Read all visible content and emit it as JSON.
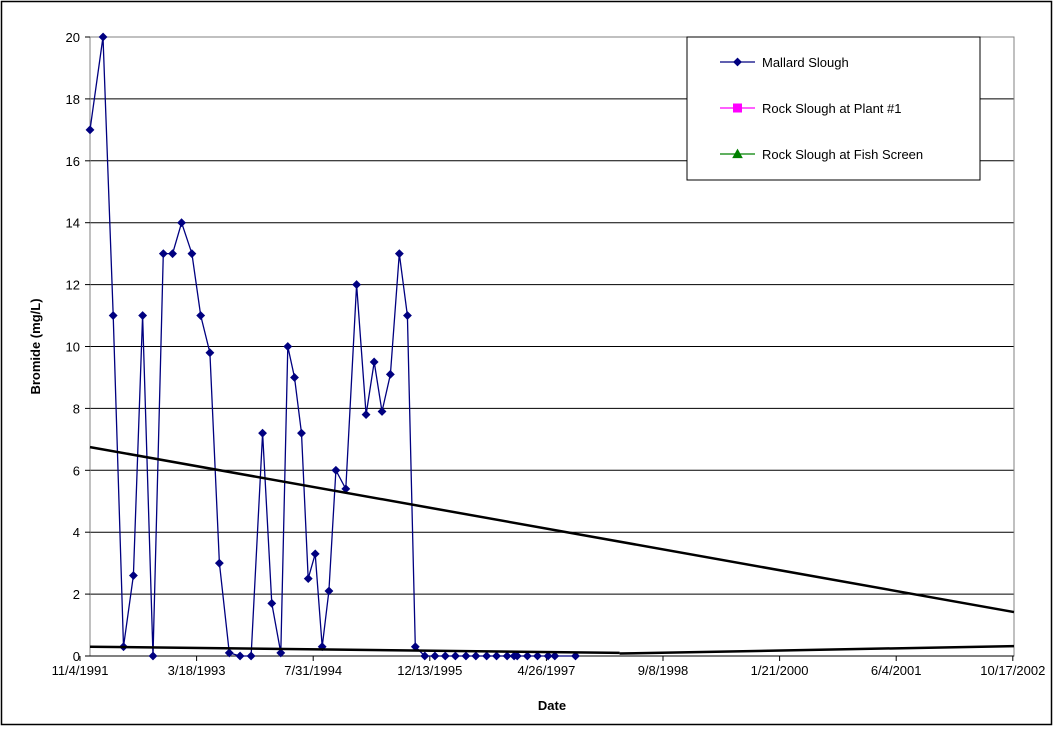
{
  "chart_data": {
    "type": "line",
    "title": "",
    "xlabel": "Date",
    "ylabel": "Bromide (mg/L)",
    "x_ticks": [
      "11/4/1991",
      "3/18/1993",
      "7/31/1994",
      "12/13/1995",
      "4/26/1997",
      "9/8/1998",
      "1/21/2000",
      "6/4/2001",
      "10/17/2002"
    ],
    "xlim": [
      "1991-11-04",
      "2003-02-01"
    ],
    "ylim": [
      0,
      20
    ],
    "y_ticks": [
      0,
      2,
      4,
      6,
      8,
      10,
      12,
      14,
      16,
      18,
      20
    ],
    "grid": "horizontal",
    "legend_position": "top-right",
    "series": [
      {
        "name": "Mallard Slough",
        "color": "#000080",
        "marker": "diamond",
        "points": [
          [
            "1991-11-04",
            17
          ],
          [
            "1992-01-01",
            20
          ],
          [
            "1992-02-15",
            11
          ],
          [
            "1992-04-01",
            0.3
          ],
          [
            "1992-05-15",
            2.6
          ],
          [
            "1992-06-25",
            11
          ],
          [
            "1992-08-10",
            0
          ],
          [
            "1992-09-25",
            13
          ],
          [
            "1992-11-05",
            13
          ],
          [
            "1992-12-15",
            14
          ],
          [
            "1993-01-30",
            13
          ],
          [
            "1993-03-10",
            11
          ],
          [
            "1993-04-20",
            9.8
          ],
          [
            "1993-06-01",
            3
          ],
          [
            "1993-07-15",
            0.1
          ],
          [
            "1993-09-01",
            0
          ],
          [
            "1993-10-20",
            0
          ],
          [
            "1993-12-10",
            7.2
          ],
          [
            "1994-01-20",
            1.7
          ],
          [
            "1994-03-01",
            0.1
          ],
          [
            "1994-04-01",
            10
          ],
          [
            "1994-05-01",
            9
          ],
          [
            "1994-06-01",
            7.2
          ],
          [
            "1994-07-01",
            2.5
          ],
          [
            "1994-08-01",
            3.3
          ],
          [
            "1994-09-01",
            0.3
          ],
          [
            "1994-10-01",
            2.1
          ],
          [
            "1994-11-01",
            6
          ],
          [
            "1994-12-15",
            5.4
          ],
          [
            "1995-02-01",
            12
          ],
          [
            "1995-03-15",
            7.8
          ],
          [
            "1995-04-20",
            9.5
          ],
          [
            "1995-05-25",
            7.9
          ],
          [
            "1995-07-01",
            9.1
          ],
          [
            "1995-08-10",
            13
          ],
          [
            "1995-09-15",
            11
          ],
          [
            "1995-10-20",
            0.3
          ],
          [
            "1995-12-01",
            0
          ],
          [
            "1996-01-15",
            0
          ],
          [
            "1996-03-01",
            0
          ],
          [
            "1996-04-15",
            0
          ],
          [
            "1996-06-01",
            0
          ],
          [
            "1996-07-15",
            0
          ],
          [
            "1996-09-01",
            0
          ],
          [
            "1996-10-15",
            0
          ],
          [
            "1996-12-01",
            0
          ],
          [
            "1997-01-15",
            0
          ],
          [
            "1997-03-01",
            0
          ],
          [
            "1997-04-15",
            0
          ],
          [
            "1997-06-01",
            0
          ],
          [
            "1997-07-01",
            0
          ],
          [
            "1997-10-01",
            0
          ],
          [
            "1997-01-01",
            0
          ]
        ]
      },
      {
        "name": "Rock Slough at Plant #1",
        "color": "#FF00FF",
        "marker": "square",
        "points": []
      },
      {
        "name": "Rock Slough at Fish Screen",
        "color": "#008000",
        "marker": "triangle",
        "points": []
      }
    ],
    "trendlines": [
      {
        "series": "Mallard Slough",
        "color": "#000000",
        "from": [
          "1991-11-04",
          6.75
        ],
        "to": [
          "2003-02-01",
          1.42
        ]
      },
      {
        "series": "Rock Slough at Plant #1",
        "color": "#000000",
        "from": [
          "1991-11-04",
          0.3
        ],
        "to": [
          "1998-04-15",
          0.1
        ]
      },
      {
        "series": "Rock Slough at Fish Screen",
        "color": "#000000",
        "from": [
          "1998-04-15",
          0.08
        ],
        "to": [
          "2003-02-01",
          0.32
        ]
      }
    ]
  }
}
